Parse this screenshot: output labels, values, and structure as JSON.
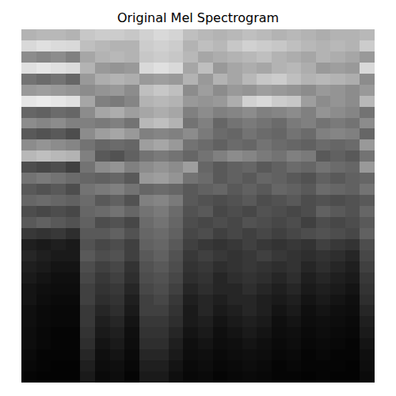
{
  "chart_data": {
    "type": "heatmap",
    "title": "Original Mel Spectrogram",
    "color": "gray",
    "tick_labels": false,
    "grid": false,
    "zlim": [
      0,
      1
    ],
    "cells": [
      [
        0.7,
        0.72,
        0.72,
        0.7,
        0.78,
        0.8,
        0.8,
        0.78,
        0.82,
        0.85,
        0.83,
        0.75,
        0.72,
        0.7,
        0.72,
        0.75,
        0.73,
        0.7,
        0.72,
        0.7,
        0.68,
        0.7,
        0.7,
        0.72
      ],
      [
        0.85,
        0.88,
        0.86,
        0.85,
        0.75,
        0.72,
        0.7,
        0.7,
        0.8,
        0.82,
        0.8,
        0.7,
        0.75,
        0.72,
        0.78,
        0.82,
        0.8,
        0.78,
        0.75,
        0.72,
        0.7,
        0.72,
        0.7,
        0.8
      ],
      [
        0.55,
        0.52,
        0.55,
        0.5,
        0.65,
        0.7,
        0.72,
        0.7,
        0.78,
        0.8,
        0.78,
        0.72,
        0.65,
        0.68,
        0.7,
        0.72,
        0.75,
        0.7,
        0.68,
        0.65,
        0.7,
        0.68,
        0.65,
        0.6
      ],
      [
        0.88,
        0.9,
        0.88,
        0.86,
        0.7,
        0.6,
        0.58,
        0.6,
        0.85,
        0.88,
        0.85,
        0.65,
        0.75,
        0.6,
        0.65,
        0.68,
        0.65,
        0.7,
        0.72,
        0.68,
        0.6,
        0.62,
        0.6,
        0.85
      ],
      [
        0.45,
        0.42,
        0.45,
        0.4,
        0.6,
        0.68,
        0.7,
        0.68,
        0.6,
        0.62,
        0.6,
        0.7,
        0.6,
        0.7,
        0.65,
        0.72,
        0.78,
        0.8,
        0.75,
        0.7,
        0.72,
        0.7,
        0.68,
        0.55
      ],
      [
        0.6,
        0.62,
        0.6,
        0.58,
        0.55,
        0.58,
        0.6,
        0.55,
        0.75,
        0.78,
        0.75,
        0.55,
        0.62,
        0.55,
        0.6,
        0.58,
        0.62,
        0.6,
        0.58,
        0.55,
        0.6,
        0.58,
        0.55,
        0.6
      ],
      [
        0.9,
        0.92,
        0.9,
        0.88,
        0.65,
        0.5,
        0.48,
        0.52,
        0.7,
        0.72,
        0.7,
        0.6,
        0.58,
        0.6,
        0.68,
        0.82,
        0.85,
        0.8,
        0.78,
        0.62,
        0.55,
        0.58,
        0.55,
        0.72
      ],
      [
        0.4,
        0.38,
        0.42,
        0.4,
        0.55,
        0.65,
        0.68,
        0.62,
        0.65,
        0.68,
        0.65,
        0.5,
        0.55,
        0.5,
        0.52,
        0.55,
        0.5,
        0.52,
        0.55,
        0.5,
        0.58,
        0.55,
        0.52,
        0.45
      ],
      [
        0.55,
        0.52,
        0.55,
        0.5,
        0.5,
        0.48,
        0.5,
        0.45,
        0.72,
        0.75,
        0.7,
        0.45,
        0.5,
        0.4,
        0.45,
        0.48,
        0.45,
        0.42,
        0.48,
        0.5,
        0.45,
        0.48,
        0.45,
        0.55
      ],
      [
        0.35,
        0.32,
        0.35,
        0.3,
        0.55,
        0.62,
        0.65,
        0.6,
        0.5,
        0.52,
        0.5,
        0.55,
        0.48,
        0.42,
        0.4,
        0.45,
        0.42,
        0.4,
        0.45,
        0.42,
        0.5,
        0.52,
        0.5,
        0.4
      ],
      [
        0.55,
        0.58,
        0.55,
        0.52,
        0.45,
        0.4,
        0.42,
        0.4,
        0.62,
        0.65,
        0.6,
        0.45,
        0.42,
        0.38,
        0.42,
        0.4,
        0.45,
        0.42,
        0.4,
        0.38,
        0.42,
        0.4,
        0.42,
        0.6
      ],
      [
        0.72,
        0.75,
        0.72,
        0.7,
        0.5,
        0.35,
        0.32,
        0.38,
        0.45,
        0.48,
        0.45,
        0.4,
        0.45,
        0.5,
        0.55,
        0.52,
        0.48,
        0.45,
        0.5,
        0.48,
        0.35,
        0.38,
        0.35,
        0.45
      ],
      [
        0.3,
        0.28,
        0.3,
        0.25,
        0.45,
        0.55,
        0.58,
        0.5,
        0.55,
        0.58,
        0.55,
        0.62,
        0.4,
        0.35,
        0.38,
        0.4,
        0.35,
        0.38,
        0.42,
        0.4,
        0.45,
        0.42,
        0.4,
        0.6
      ],
      [
        0.45,
        0.48,
        0.45,
        0.42,
        0.4,
        0.38,
        0.4,
        0.35,
        0.6,
        0.62,
        0.58,
        0.45,
        0.42,
        0.35,
        0.38,
        0.35,
        0.4,
        0.38,
        0.35,
        0.32,
        0.38,
        0.35,
        0.38,
        0.4
      ],
      [
        0.35,
        0.32,
        0.35,
        0.3,
        0.45,
        0.48,
        0.5,
        0.45,
        0.4,
        0.42,
        0.4,
        0.35,
        0.38,
        0.4,
        0.35,
        0.38,
        0.35,
        0.4,
        0.38,
        0.35,
        0.42,
        0.4,
        0.38,
        0.45
      ],
      [
        0.4,
        0.42,
        0.4,
        0.38,
        0.42,
        0.35,
        0.38,
        0.32,
        0.5,
        0.52,
        0.48,
        0.35,
        0.32,
        0.3,
        0.32,
        0.35,
        0.3,
        0.32,
        0.35,
        0.3,
        0.32,
        0.3,
        0.32,
        0.35
      ],
      [
        0.3,
        0.28,
        0.3,
        0.28,
        0.4,
        0.42,
        0.45,
        0.4,
        0.45,
        0.48,
        0.42,
        0.32,
        0.35,
        0.28,
        0.3,
        0.28,
        0.32,
        0.3,
        0.28,
        0.3,
        0.38,
        0.35,
        0.32,
        0.4
      ],
      [
        0.35,
        0.38,
        0.35,
        0.32,
        0.38,
        0.3,
        0.32,
        0.28,
        0.42,
        0.45,
        0.4,
        0.3,
        0.28,
        0.3,
        0.28,
        0.32,
        0.3,
        0.28,
        0.3,
        0.25,
        0.3,
        0.28,
        0.3,
        0.35
      ],
      [
        0.22,
        0.2,
        0.22,
        0.18,
        0.35,
        0.35,
        0.38,
        0.32,
        0.4,
        0.42,
        0.38,
        0.28,
        0.3,
        0.25,
        0.28,
        0.25,
        0.28,
        0.25,
        0.28,
        0.3,
        0.32,
        0.3,
        0.28,
        0.38
      ],
      [
        0.12,
        0.1,
        0.12,
        0.1,
        0.32,
        0.28,
        0.3,
        0.25,
        0.38,
        0.4,
        0.35,
        0.25,
        0.22,
        0.2,
        0.22,
        0.25,
        0.22,
        0.2,
        0.22,
        0.2,
        0.25,
        0.22,
        0.2,
        0.3
      ],
      [
        0.15,
        0.12,
        0.1,
        0.1,
        0.35,
        0.3,
        0.32,
        0.25,
        0.35,
        0.38,
        0.32,
        0.22,
        0.25,
        0.22,
        0.2,
        0.22,
        0.25,
        0.22,
        0.2,
        0.18,
        0.2,
        0.18,
        0.15,
        0.28
      ],
      [
        0.12,
        0.1,
        0.08,
        0.08,
        0.3,
        0.25,
        0.28,
        0.2,
        0.32,
        0.35,
        0.3,
        0.2,
        0.22,
        0.18,
        0.2,
        0.22,
        0.2,
        0.18,
        0.2,
        0.15,
        0.18,
        0.15,
        0.12,
        0.25
      ],
      [
        0.1,
        0.08,
        0.06,
        0.06,
        0.28,
        0.22,
        0.25,
        0.18,
        0.3,
        0.32,
        0.28,
        0.18,
        0.2,
        0.15,
        0.18,
        0.2,
        0.18,
        0.15,
        0.18,
        0.12,
        0.15,
        0.12,
        0.1,
        0.22
      ],
      [
        0.08,
        0.06,
        0.05,
        0.05,
        0.25,
        0.2,
        0.22,
        0.15,
        0.28,
        0.3,
        0.25,
        0.15,
        0.18,
        0.15,
        0.15,
        0.18,
        0.15,
        0.12,
        0.15,
        0.1,
        0.12,
        0.1,
        0.08,
        0.2
      ],
      [
        0.08,
        0.05,
        0.04,
        0.04,
        0.25,
        0.18,
        0.2,
        0.12,
        0.25,
        0.28,
        0.22,
        0.12,
        0.15,
        0.12,
        0.15,
        0.15,
        0.12,
        0.1,
        0.12,
        0.08,
        0.1,
        0.08,
        0.06,
        0.18
      ],
      [
        0.06,
        0.04,
        0.03,
        0.03,
        0.22,
        0.15,
        0.18,
        0.1,
        0.25,
        0.25,
        0.2,
        0.1,
        0.15,
        0.1,
        0.12,
        0.15,
        0.12,
        0.08,
        0.1,
        0.06,
        0.08,
        0.06,
        0.05,
        0.15
      ],
      [
        0.06,
        0.04,
        0.03,
        0.03,
        0.22,
        0.12,
        0.15,
        0.08,
        0.22,
        0.22,
        0.18,
        0.1,
        0.12,
        0.08,
        0.1,
        0.12,
        0.1,
        0.06,
        0.08,
        0.05,
        0.06,
        0.05,
        0.04,
        0.12
      ],
      [
        0.05,
        0.03,
        0.02,
        0.02,
        0.2,
        0.1,
        0.12,
        0.06,
        0.2,
        0.2,
        0.15,
        0.08,
        0.1,
        0.06,
        0.08,
        0.1,
        0.08,
        0.05,
        0.06,
        0.04,
        0.05,
        0.04,
        0.03,
        0.1
      ],
      [
        0.05,
        0.03,
        0.02,
        0.02,
        0.18,
        0.08,
        0.1,
        0.05,
        0.18,
        0.18,
        0.12,
        0.06,
        0.08,
        0.05,
        0.06,
        0.08,
        0.06,
        0.04,
        0.05,
        0.03,
        0.04,
        0.03,
        0.02,
        0.08
      ],
      [
        0.04,
        0.02,
        0.02,
        0.02,
        0.15,
        0.06,
        0.08,
        0.04,
        0.15,
        0.15,
        0.1,
        0.05,
        0.06,
        0.04,
        0.05,
        0.06,
        0.05,
        0.03,
        0.04,
        0.02,
        0.03,
        0.02,
        0.02,
        0.06
      ],
      [
        0.03,
        0.02,
        0.01,
        0.01,
        0.12,
        0.05,
        0.06,
        0.03,
        0.12,
        0.12,
        0.08,
        0.04,
        0.05,
        0.03,
        0.04,
        0.05,
        0.04,
        0.02,
        0.03,
        0.02,
        0.02,
        0.02,
        0.01,
        0.05
      ],
      [
        0.02,
        0.01,
        0.01,
        0.01,
        0.1,
        0.04,
        0.05,
        0.02,
        0.1,
        0.1,
        0.06,
        0.03,
        0.04,
        0.02,
        0.03,
        0.04,
        0.03,
        0.02,
        0.02,
        0.01,
        0.02,
        0.01,
        0.01,
        0.04
      ]
    ]
  }
}
